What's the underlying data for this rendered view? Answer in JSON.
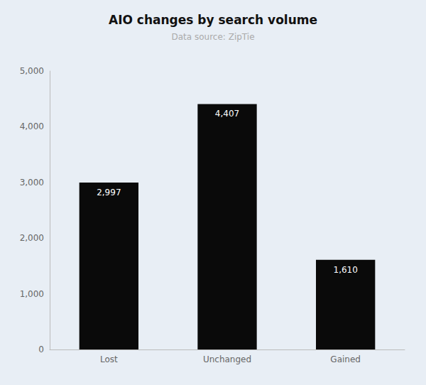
{
  "chart_data": {
    "type": "bar",
    "title": "AIO changes by search volume",
    "subtitle": "Data source: ZipTie",
    "categories": [
      "Lost",
      "Unchanged",
      "Gained"
    ],
    "values": [
      2997,
      4407,
      1610
    ],
    "value_labels": [
      "2,997",
      "4,407",
      "1,610"
    ],
    "data_labels": true,
    "color": "#0a0a0a",
    "ylim": [
      0,
      5000
    ],
    "yticks": [
      0,
      {
        "value": 1000,
        "label": "1,000"
      },
      {
        "value": 2000,
        "label": "2,000"
      },
      {
        "value": 3000,
        "label": "3,000"
      },
      {
        "value": 4000,
        "label": "4,000"
      },
      {
        "value": 5000,
        "label": "5,000"
      }
    ],
    "grid": false
  }
}
